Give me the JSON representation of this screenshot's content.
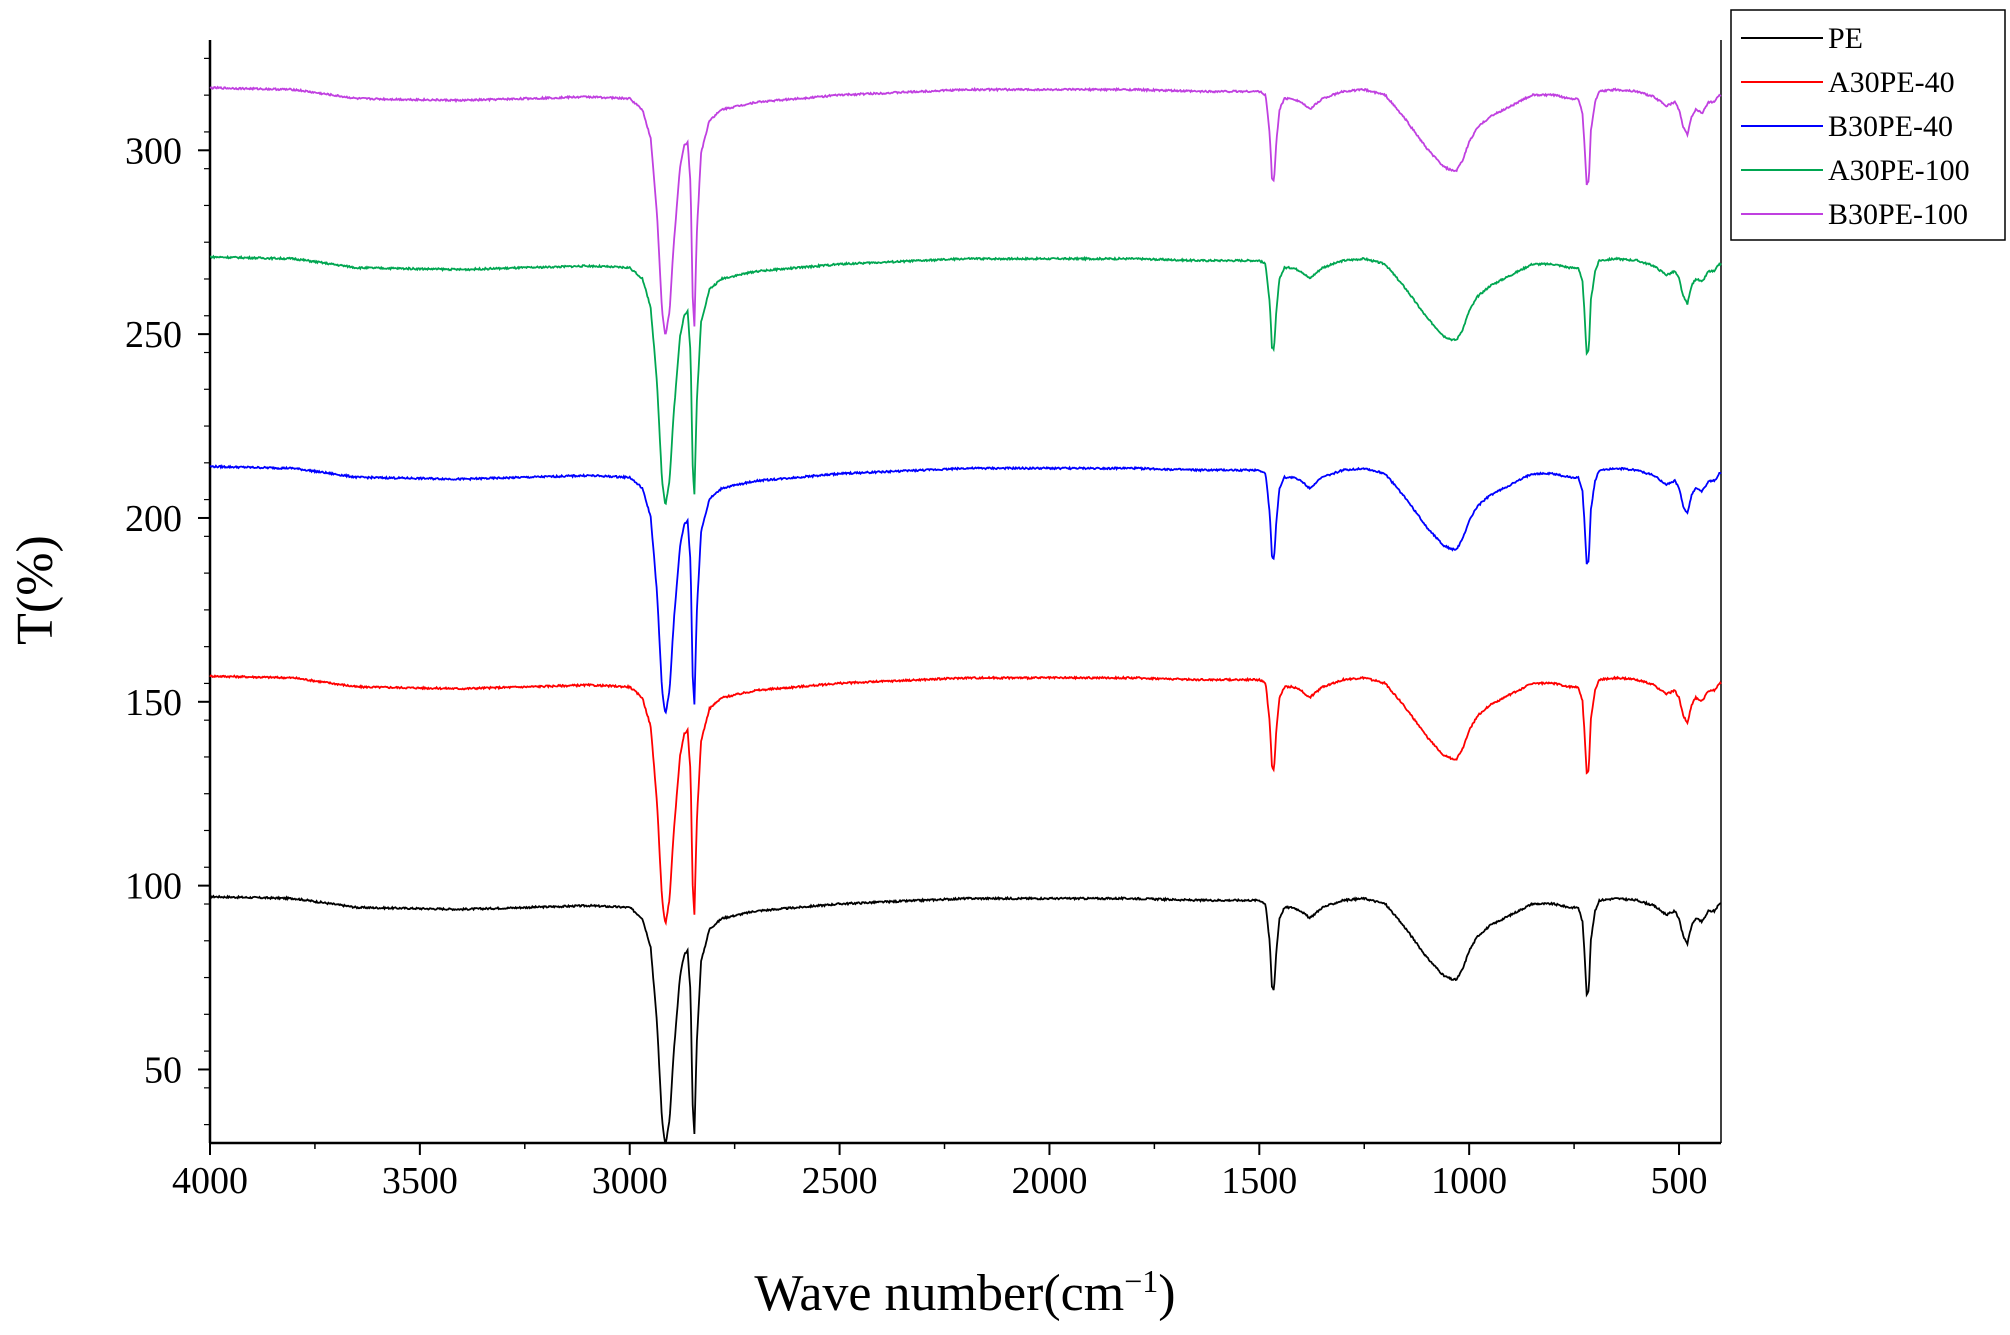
{
  "chart_data": {
    "type": "line",
    "title": "",
    "xlabel": "Wave number(cm",
    "xlabel_sup": "−1",
    "xlabel_close": ")",
    "ylabel": "T(%)",
    "xlim": [
      4000,
      400
    ],
    "ylim": [
      30,
      330
    ],
    "x_ticks": [
      4000,
      3500,
      3000,
      2500,
      2000,
      1500,
      1000,
      500
    ],
    "x_tick_labels": [
      "4000",
      "3500",
      "3000",
      "2500",
      "2000",
      "1500",
      "1000",
      "500"
    ],
    "y_ticks": [
      50,
      100,
      150,
      200,
      250,
      300
    ],
    "y_tick_labels": [
      "50",
      "100",
      "150",
      "200",
      "250",
      "300"
    ],
    "grid": false,
    "legend_position": "top-right",
    "shape": {
      "x": [
        4000,
        3800,
        3650,
        3400,
        3100,
        3000,
        2970,
        2950,
        2935,
        2923,
        2915,
        2905,
        2895,
        2880,
        2870,
        2862,
        2855,
        2850,
        2846,
        2840,
        2830,
        2810,
        2780,
        2700,
        2500,
        2200,
        2000,
        1800,
        1650,
        1500,
        1485,
        1475,
        1470,
        1465,
        1460,
        1452,
        1440,
        1420,
        1400,
        1380,
        1370,
        1350,
        1300,
        1250,
        1200,
        1150,
        1100,
        1060,
        1040,
        1030,
        1015,
        1000,
        980,
        950,
        900,
        850,
        800,
        760,
        740,
        730,
        725,
        720,
        715,
        710,
        700,
        690,
        650,
        600,
        560,
        530,
        510,
        500,
        490,
        480,
        470,
        460,
        445,
        430,
        415,
        405,
        400
      ],
      "y": [
        0,
        -0.5,
        -3,
        -3.5,
        -2.5,
        -3,
        -6,
        -14,
        -35,
        -62,
        -69,
        -62,
        -43,
        -22,
        -16,
        -15,
        -27,
        -58,
        -66,
        -40,
        -18,
        -9,
        -6,
        -4,
        -2,
        -0.5,
        -0.5,
        -0.5,
        -1,
        -1,
        -2,
        -13,
        -25,
        -26,
        -16,
        -6,
        -3,
        -3,
        -4,
        -6,
        -5,
        -3,
        -1,
        -0.5,
        -2,
        -9,
        -17,
        -22,
        -23,
        -23,
        -20,
        -15,
        -11,
        -8,
        -5,
        -2,
        -2,
        -3,
        -3,
        -7,
        -16,
        -27,
        -26,
        -12,
        -4,
        -1,
        -0.5,
        -1,
        -2.5,
        -5,
        -4,
        -6,
        -11,
        -13,
        -8,
        -6,
        -7,
        -4,
        -4,
        -2,
        -2
      ]
    },
    "series": [
      {
        "name": "PE",
        "color": "#000000",
        "baseline": 97,
        "scale": 0.98
      },
      {
        "name": "A30PE-40",
        "color": "#ff0000",
        "baseline": 157,
        "scale": 0.98
      },
      {
        "name": "B30PE-40",
        "color": "#0000ff",
        "baseline": 214,
        "scale": 0.98
      },
      {
        "name": "A30PE-100",
        "color": "#00a651",
        "baseline": 271,
        "scale": 0.98
      },
      {
        "name": "B30PE-100",
        "color": "#c040e0",
        "baseline": 317,
        "scale": 0.98
      }
    ]
  }
}
